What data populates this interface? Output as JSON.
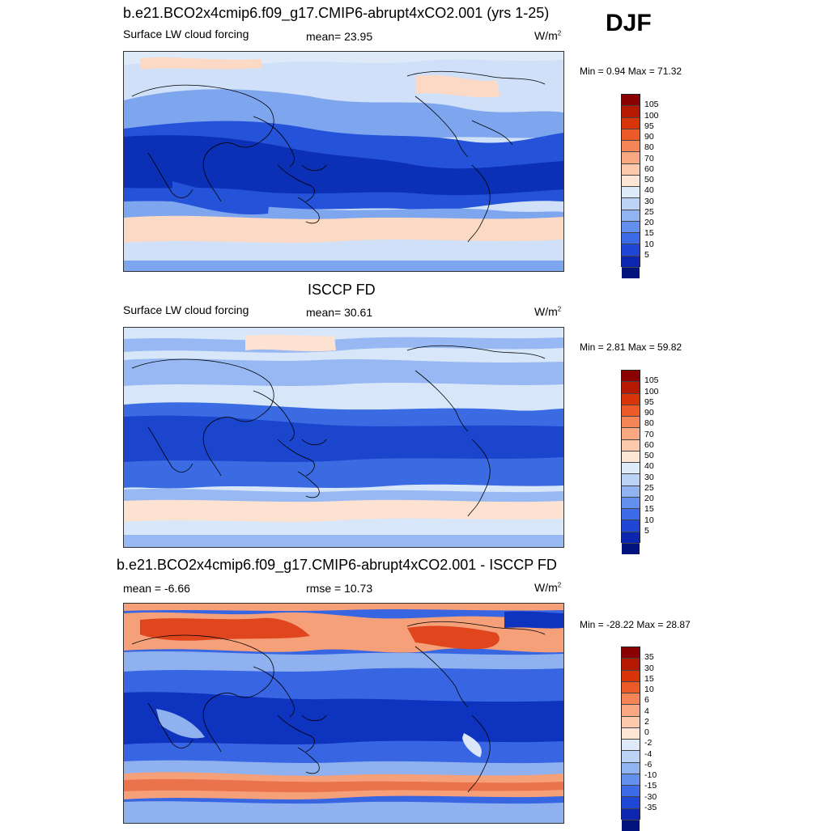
{
  "season": "DJF",
  "panels": [
    {
      "title": "b.e21.BCO2x4cmip6.f09_g17.CMIP6-abrupt4xCO2.001 (yrs 1-25)",
      "left_label": "Surface LW cloud forcing",
      "center_label": "mean=  23.95",
      "units": "W/m",
      "units_exp": "2",
      "minmax": "Min =   0.94 Max =  71.32",
      "colorbar_labels": [
        "105",
        "100",
        "95",
        "90",
        "80",
        "70",
        "60",
        "50",
        "40",
        "30",
        "25",
        "20",
        "15",
        "10",
        "5"
      ]
    },
    {
      "title": "ISCCP FD",
      "left_label": "Surface LW cloud forcing",
      "center_label": "mean=  30.61",
      "units": "W/m",
      "units_exp": "2",
      "minmax": "Min =   2.81 Max =  59.82",
      "colorbar_labels": [
        "105",
        "100",
        "95",
        "90",
        "80",
        "70",
        "60",
        "50",
        "40",
        "30",
        "25",
        "20",
        "15",
        "10",
        "5"
      ]
    },
    {
      "title": "b.e21.BCO2x4cmip6.f09_g17.CMIP6-abrupt4xCO2.001 - ISCCP FD",
      "left_label": "mean =  -6.66",
      "center_label": "rmse =  10.73",
      "units": "W/m",
      "units_exp": "2",
      "minmax": "Min = -28.22 Max =  28.87",
      "colorbar_labels": [
        "35",
        "30",
        "15",
        "10",
        "6",
        "4",
        "2",
        "0",
        "-2",
        "-4",
        "-6",
        "-10",
        "-15",
        "-30",
        "-35"
      ]
    }
  ],
  "colorbar_colors": [
    "#8b0000",
    "#b51a00",
    "#d8340a",
    "#ec5a2a",
    "#f58456",
    "#f9a882",
    "#fcc9ac",
    "#fde6d6",
    "#dfeaf8",
    "#bcd3f5",
    "#91b3f2",
    "#6390ee",
    "#3b6be6",
    "#1f46d4",
    "#0c26b0",
    "#00137d"
  ],
  "map_palette": {
    "panel1": {
      "deep": "#0b2fb5",
      "mid": "#2452d8",
      "light": "#7ea6ef",
      "pale": "#cfe0f8",
      "warm": "#fcd9c4"
    },
    "panel2": {
      "deep": "#1a45cc",
      "mid": "#3a6be2",
      "light": "#97b8f2",
      "pale": "#d8e6f9",
      "warm": "#fde2d1"
    },
    "panel3": {
      "deep": "#0e33bf",
      "mid": "#3866e2",
      "light": "#8fb1f0",
      "pale": "#dbe7f8",
      "warm": "#f6a07a",
      "hot": "#e0461e"
    }
  }
}
